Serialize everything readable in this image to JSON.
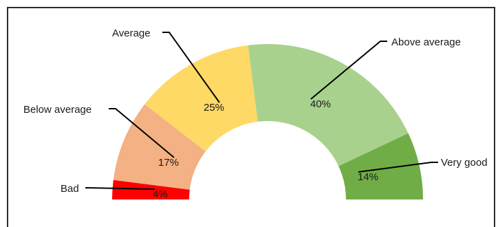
{
  "chart_data": {
    "type": "pie",
    "subtype": "half-donut",
    "title": "",
    "categories": [
      "Bad",
      "Below average",
      "Average",
      "Above average",
      "Very good"
    ],
    "values": [
      4,
      17,
      25,
      40,
      14
    ],
    "value_labels": [
      "4%",
      "17%",
      "25%",
      "40%",
      "14%"
    ],
    "unit": "%",
    "colors": [
      "#ff0000",
      "#f4b183",
      "#ffd966",
      "#a9d18e",
      "#70ad47"
    ],
    "legend": "none",
    "data_labels": "category name with leader line, percentage inside slice"
  }
}
